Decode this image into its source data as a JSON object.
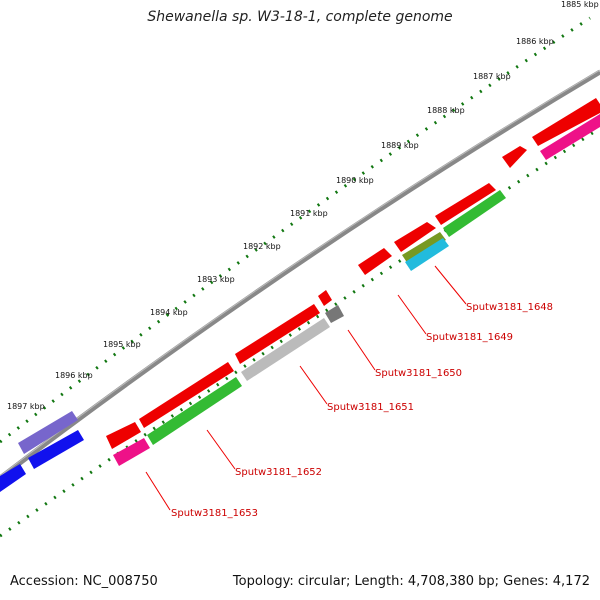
{
  "header": {
    "title": "Shewanella sp. W3-18-1, complete genome"
  },
  "footer": {
    "accession": "Accession: NC_008750",
    "summary": "Topology: circular; Length: 4,708,380 bp; Genes: 4,172"
  },
  "ruler": {
    "ticks": [
      "1885 kbp",
      "1886 kbp",
      "1887 kbp",
      "1888 kbp",
      "1889 kbp",
      "1890 kbp",
      "1891 kbp",
      "1892 kbp",
      "1893 kbp",
      "1894 kbp",
      "1895 kbp",
      "1896 kbp",
      "1897 kbp"
    ]
  },
  "genes": [
    {
      "name": "Sputw3181_1648",
      "color": "#22bbdd"
    },
    {
      "name": "Sputw3181_1649",
      "color": "#ee0000"
    },
    {
      "name": "Sputw3181_1650",
      "color": "#777777"
    },
    {
      "name": "Sputw3181_1651",
      "color": "#bbbbbb"
    },
    {
      "name": "Sputw3181_1652",
      "color": "#33bb33"
    },
    {
      "name": "Sputw3181_1653",
      "color": "#ee1188"
    }
  ],
  "colors": {
    "backbone": "#888888",
    "forward_gene": "#ee0000",
    "reverse_gene": "#33bb33",
    "ruler_dots": "#117711",
    "label": "#cc0000"
  }
}
